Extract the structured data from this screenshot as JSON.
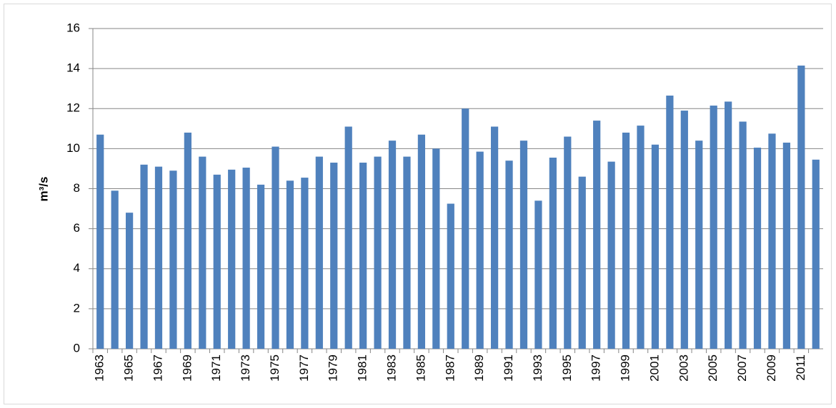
{
  "chart_data": {
    "type": "bar",
    "y_label": "m³/s",
    "categories": [
      "1963",
      null,
      "1965",
      null,
      "1967",
      null,
      "1969",
      null,
      "1971",
      null,
      "1973",
      null,
      "1975",
      null,
      "1977",
      null,
      "1979",
      null,
      "1981",
      null,
      "1983",
      null,
      "1985",
      null,
      "1987",
      null,
      "1989",
      null,
      "1991",
      null,
      "1993",
      null,
      "1995",
      null,
      "1997",
      null,
      "1999",
      null,
      "2001",
      null,
      "2003",
      null,
      "2005",
      null,
      "2007",
      null,
      "2009",
      null,
      "2011",
      null
    ],
    "values": [
      10.7,
      7.9,
      6.8,
      9.2,
      9.1,
      8.9,
      10.8,
      9.6,
      8.7,
      8.95,
      9.05,
      8.2,
      10.1,
      8.4,
      8.55,
      9.6,
      9.3,
      11.1,
      9.3,
      9.6,
      10.4,
      9.6,
      10.7,
      10.0,
      7.25,
      12.0,
      9.85,
      11.1,
      9.4,
      10.4,
      7.4,
      9.55,
      10.6,
      8.6,
      11.4,
      9.35,
      10.8,
      11.15,
      10.2,
      12.65,
      11.9,
      10.4,
      12.15,
      12.35,
      11.35,
      10.05,
      10.75,
      10.3,
      14.15,
      9.45
    ],
    "color": "#4f81bd",
    "ylim": [
      0,
      16
    ],
    "yticks": [
      0,
      2,
      4,
      6,
      8,
      10,
      12,
      14,
      16
    ],
    "grid": true
  }
}
